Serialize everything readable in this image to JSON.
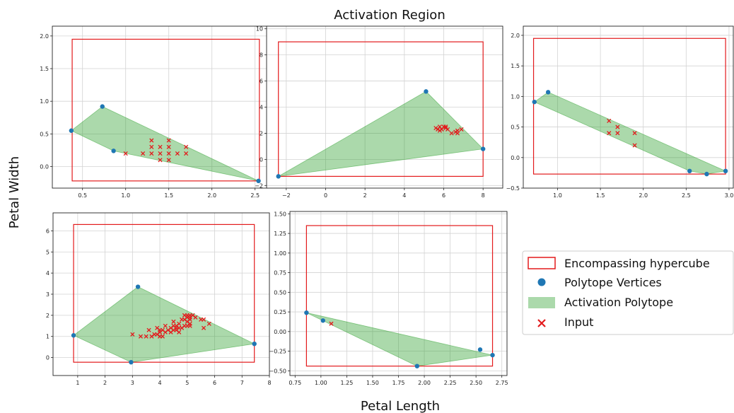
{
  "figure": {
    "title": "Activation Region",
    "xlabel": "Petal Length",
    "ylabel": "Petal Width"
  },
  "legend": {
    "entries": [
      {
        "key": "hypercube",
        "label": "Encompassing hypercube"
      },
      {
        "key": "vertices",
        "label": "Polytope Vertices"
      },
      {
        "key": "polytope",
        "label": "Activation Polytope"
      },
      {
        "key": "input",
        "label": "Input"
      }
    ],
    "placement": "right"
  },
  "colors": {
    "hypercube": "#e31a1c",
    "vertices": "#1f77b4",
    "polytope_fill": "#2ca02c",
    "input": "#e31a1c",
    "grid": "#d3d3d3"
  },
  "chart_data": [
    {
      "type": "scatter",
      "grid": true,
      "xlim": [
        0.15,
        2.65
      ],
      "ylim": [
        -0.33,
        2.15
      ],
      "xticks": [
        0.5,
        1.0,
        1.5,
        2.0,
        2.5
      ],
      "xtick_labels": [
        "0.5",
        "1.0",
        "1.5",
        "2.0",
        "2.5"
      ],
      "yticks": [
        0.0,
        0.5,
        1.0,
        1.5,
        2.0
      ],
      "ytick_labels": [
        "0.0",
        "0.5",
        "1.0",
        "1.5",
        "2.0"
      ],
      "hypercube": {
        "x": [
          0.38,
          2.55
        ],
        "y": [
          -0.22,
          1.95
        ]
      },
      "polytope": [
        [
          0.37,
          0.55
        ],
        [
          0.73,
          0.92
        ],
        [
          2.54,
          -0.22
        ],
        [
          0.86,
          0.24
        ]
      ],
      "vertices": [
        [
          0.37,
          0.55
        ],
        [
          0.73,
          0.92
        ],
        [
          0.86,
          0.24
        ],
        [
          2.54,
          -0.22
        ]
      ],
      "inputs": [
        [
          1.0,
          0.2
        ],
        [
          1.2,
          0.2
        ],
        [
          1.3,
          0.2
        ],
        [
          1.3,
          0.3
        ],
        [
          1.3,
          0.4
        ],
        [
          1.4,
          0.1
        ],
        [
          1.4,
          0.2
        ],
        [
          1.4,
          0.3
        ],
        [
          1.5,
          0.1
        ],
        [
          1.5,
          0.2
        ],
        [
          1.5,
          0.3
        ],
        [
          1.5,
          0.4
        ],
        [
          1.6,
          0.2
        ],
        [
          1.7,
          0.2
        ],
        [
          1.7,
          0.3
        ]
      ]
    },
    {
      "type": "scatter",
      "grid": true,
      "xlim": [
        -3.0,
        9.0
      ],
      "ylim": [
        -2.2,
        10.2
      ],
      "xticks": [
        -2,
        0,
        2,
        4,
        6,
        8
      ],
      "xtick_labels": [
        "−2",
        "0",
        "2",
        "4",
        "6",
        "8"
      ],
      "yticks": [
        -2,
        0,
        2,
        4,
        6,
        8,
        10
      ],
      "ytick_labels": [
        "−2",
        "0",
        "2",
        "4",
        "6",
        "8",
        "10"
      ],
      "hypercube": {
        "x": [
          -2.4,
          8.0
        ],
        "y": [
          -1.3,
          9.0
        ]
      },
      "polytope": [
        [
          -2.4,
          -1.3
        ],
        [
          5.1,
          5.2
        ],
        [
          8.0,
          0.8
        ]
      ],
      "vertices": [
        [
          -2.4,
          -1.3
        ],
        [
          5.1,
          5.2
        ],
        [
          8.0,
          0.8
        ]
      ],
      "inputs": [
        [
          5.6,
          2.4
        ],
        [
          5.7,
          2.3
        ],
        [
          5.8,
          2.2
        ],
        [
          5.9,
          2.3
        ],
        [
          6.0,
          2.5
        ],
        [
          6.1,
          2.4
        ],
        [
          6.2,
          2.3
        ],
        [
          6.4,
          2.0
        ],
        [
          6.6,
          2.1
        ],
        [
          6.7,
          2.0
        ],
        [
          6.9,
          2.3
        ],
        [
          5.8,
          2.5
        ],
        [
          6.1,
          2.5
        ],
        [
          6.7,
          2.2
        ]
      ]
    },
    {
      "type": "scatter",
      "grid": true,
      "xlim": [
        0.6,
        3.05
      ],
      "ylim": [
        -0.5,
        2.15
      ],
      "xticks": [
        1.0,
        1.5,
        2.0,
        2.5,
        3.0
      ],
      "xtick_labels": [
        "1.0",
        "1.5",
        "2.0",
        "2.5",
        "3.0"
      ],
      "yticks": [
        -0.5,
        0.0,
        0.5,
        1.0,
        1.5,
        2.0
      ],
      "ytick_labels": [
        "−0.5",
        "0.0",
        "0.5",
        "1.0",
        "1.5",
        "2.0"
      ],
      "hypercube": {
        "x": [
          0.72,
          2.96
        ],
        "y": [
          -0.27,
          1.95
        ]
      },
      "polytope": [
        [
          0.73,
          0.91
        ],
        [
          0.89,
          1.07
        ],
        [
          2.96,
          -0.22
        ],
        [
          2.74,
          -0.27
        ],
        [
          2.54,
          -0.22
        ]
      ],
      "vertices": [
        [
          0.73,
          0.91
        ],
        [
          0.89,
          1.07
        ],
        [
          2.54,
          -0.22
        ],
        [
          2.74,
          -0.27
        ],
        [
          2.96,
          -0.22
        ]
      ],
      "inputs": [
        [
          1.6,
          0.6
        ],
        [
          1.6,
          0.4
        ],
        [
          1.7,
          0.5
        ],
        [
          1.7,
          0.4
        ],
        [
          1.9,
          0.4
        ],
        [
          1.9,
          0.2
        ]
      ]
    },
    {
      "type": "scatter",
      "grid": true,
      "xlim": [
        0.1,
        8.0
      ],
      "ylim": [
        -0.85,
        6.85
      ],
      "xticks": [
        1,
        2,
        3,
        4,
        5,
        6,
        7,
        8
      ],
      "xtick_labels": [
        "1",
        "2",
        "3",
        "4",
        "5",
        "6",
        "7",
        "8"
      ],
      "yticks": [
        0,
        1,
        2,
        3,
        4,
        5,
        6
      ],
      "ytick_labels": [
        "0",
        "1",
        "2",
        "3",
        "4",
        "5",
        "6"
      ],
      "hypercube": {
        "x": [
          0.85,
          7.45
        ],
        "y": [
          -0.22,
          6.3
        ]
      },
      "polytope": [
        [
          0.85,
          1.05
        ],
        [
          3.2,
          3.35
        ],
        [
          7.45,
          0.65
        ],
        [
          2.95,
          -0.22
        ]
      ],
      "vertices": [
        [
          0.85,
          1.05
        ],
        [
          3.2,
          3.35
        ],
        [
          2.95,
          -0.22
        ],
        [
          7.45,
          0.65
        ]
      ],
      "inputs": [
        [
          3.0,
          1.1
        ],
        [
          3.3,
          1.0
        ],
        [
          3.5,
          1.0
        ],
        [
          3.6,
          1.3
        ],
        [
          3.7,
          1.0
        ],
        [
          3.8,
          1.1
        ],
        [
          3.9,
          1.1
        ],
        [
          3.9,
          1.4
        ],
        [
          4.0,
          1.0
        ],
        [
          4.0,
          1.2
        ],
        [
          4.0,
          1.3
        ],
        [
          4.1,
          1.0
        ],
        [
          4.1,
          1.3
        ],
        [
          4.2,
          1.2
        ],
        [
          4.2,
          1.5
        ],
        [
          4.3,
          1.3
        ],
        [
          4.4,
          1.2
        ],
        [
          4.4,
          1.4
        ],
        [
          4.5,
          1.3
        ],
        [
          4.5,
          1.5
        ],
        [
          4.5,
          1.7
        ],
        [
          4.6,
          1.3
        ],
        [
          4.6,
          1.4
        ],
        [
          4.6,
          1.5
        ],
        [
          4.7,
          1.2
        ],
        [
          4.7,
          1.4
        ],
        [
          4.7,
          1.6
        ],
        [
          4.8,
          1.4
        ],
        [
          4.8,
          1.8
        ],
        [
          4.9,
          1.5
        ],
        [
          4.9,
          1.8
        ],
        [
          4.9,
          2.0
        ],
        [
          5.0,
          1.5
        ],
        [
          5.0,
          1.7
        ],
        [
          5.0,
          1.9
        ],
        [
          5.0,
          2.0
        ],
        [
          5.1,
          1.5
        ],
        [
          5.1,
          1.6
        ],
        [
          5.1,
          1.8
        ],
        [
          5.1,
          1.9
        ],
        [
          5.1,
          2.0
        ],
        [
          5.2,
          2.0
        ],
        [
          5.3,
          1.9
        ],
        [
          5.5,
          1.8
        ],
        [
          5.6,
          1.4
        ],
        [
          5.6,
          1.8
        ],
        [
          5.8,
          1.6
        ]
      ]
    },
    {
      "type": "scatter",
      "grid": true,
      "xlim": [
        0.7,
        2.8
      ],
      "ylim": [
        -0.56,
        1.53
      ],
      "xticks": [
        0.75,
        1.0,
        1.25,
        1.5,
        1.75,
        2.0,
        2.25,
        2.5,
        2.75
      ],
      "xtick_labels": [
        "0.75",
        "1.00",
        "1.25",
        "1.50",
        "1.75",
        "2.00",
        "2.25",
        "2.50",
        "2.75"
      ],
      "yticks": [
        -0.5,
        -0.25,
        0.0,
        0.25,
        0.5,
        0.75,
        1.0,
        1.25,
        1.5
      ],
      "ytick_labels": [
        "−0.50",
        "−0.25",
        "0.00",
        "0.25",
        "0.50",
        "0.75",
        "1.00",
        "1.25",
        "1.50"
      ],
      "hypercube": {
        "x": [
          0.86,
          2.66
        ],
        "y": [
          -0.44,
          1.35
        ]
      },
      "polytope": [
        [
          0.86,
          0.24
        ],
        [
          2.66,
          -0.3
        ],
        [
          1.93,
          -0.44
        ]
      ],
      "vertices": [
        [
          0.86,
          0.24
        ],
        [
          1.02,
          0.14
        ],
        [
          1.93,
          -0.44
        ],
        [
          2.54,
          -0.23
        ],
        [
          2.66,
          -0.3
        ]
      ],
      "inputs": [
        [
          1.1,
          0.1
        ]
      ]
    }
  ]
}
